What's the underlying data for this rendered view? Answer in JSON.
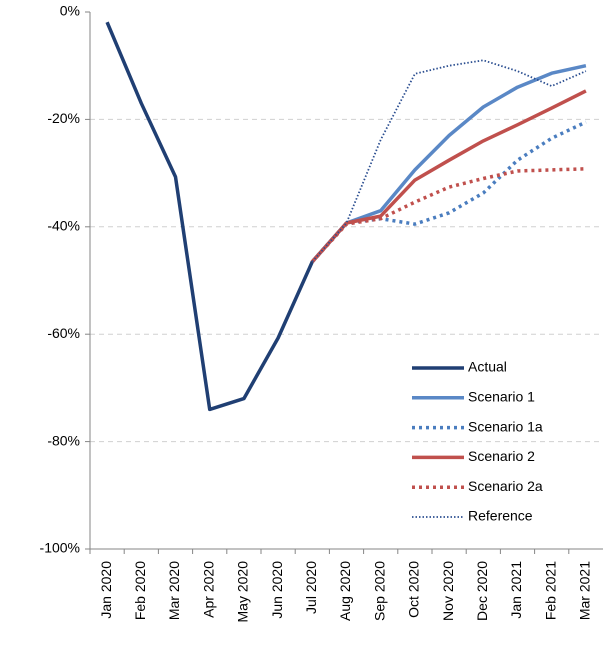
{
  "chart_data": {
    "type": "line",
    "categories": [
      "Jan 2020",
      "Feb 2020",
      "Mar 2020",
      "Apr 2020",
      "May 2020",
      "Jun 2020",
      "Jul 2020",
      "Aug 2020",
      "Sep 2020",
      "Oct 2020",
      "Nov 2020",
      "Dec 2020",
      "Jan 2021",
      "Feb 2021",
      "Mar 2021"
    ],
    "series": [
      {
        "name": "Actual",
        "color": "#203f73",
        "dash": "solid",
        "width": 3.5,
        "values": [
          -1.9,
          -17,
          -30.7,
          -74,
          -72,
          -60.7,
          -46.5,
          -39.3,
          null,
          null,
          null,
          null,
          null,
          null,
          null
        ]
      },
      {
        "name": "Scenario 1",
        "color": "#5a88c6",
        "dash": "solid",
        "width": 3.5,
        "values": [
          null,
          null,
          null,
          null,
          null,
          null,
          -46.5,
          -39.3,
          -37,
          -29.4,
          -23,
          -17.7,
          -14,
          -11.4,
          -10
        ]
      },
      {
        "name": "Scenario 1a",
        "color": "#4a7dbf",
        "dash": "dotted",
        "width": 3.5,
        "values": [
          null,
          null,
          null,
          null,
          null,
          null,
          -46.5,
          -39.3,
          -38.5,
          -39.5,
          -37.4,
          -33.7,
          -27.6,
          -23.5,
          -20.5
        ]
      },
      {
        "name": "Scenario 2",
        "color": "#c0504d",
        "dash": "solid",
        "width": 3.5,
        "values": [
          null,
          null,
          null,
          null,
          null,
          null,
          -46.5,
          -39.3,
          -38,
          -31.3,
          -27.6,
          -24,
          -21,
          -17.9,
          -14.7
        ]
      },
      {
        "name": "Scenario 2a",
        "color": "#c0504d",
        "dash": "dotted",
        "width": 3.5,
        "values": [
          null,
          null,
          null,
          null,
          null,
          null,
          -46.5,
          -39.5,
          -38.5,
          -35.4,
          -32.6,
          -31,
          -29.6,
          -29.4,
          -29.2
        ]
      },
      {
        "name": "Reference",
        "color": "#2c4f91",
        "dash": "dotted",
        "width": 1.8,
        "values": [
          null,
          null,
          null,
          null,
          null,
          null,
          -46.5,
          -39.3,
          -23.8,
          -11.5,
          -10,
          -9,
          -11,
          -13.8,
          -11
        ]
      }
    ],
    "ylim": [
      -100,
      0
    ],
    "yticks": [
      {
        "value": 0,
        "label": "0%"
      },
      {
        "value": -20,
        "label": "-20%"
      },
      {
        "value": -40,
        "label": "-40%"
      },
      {
        "value": -60,
        "label": "-60%"
      },
      {
        "value": -80,
        "label": "-80%"
      },
      {
        "value": -100,
        "label": "-100%"
      }
    ],
    "grid": true,
    "legend": "lower right"
  }
}
